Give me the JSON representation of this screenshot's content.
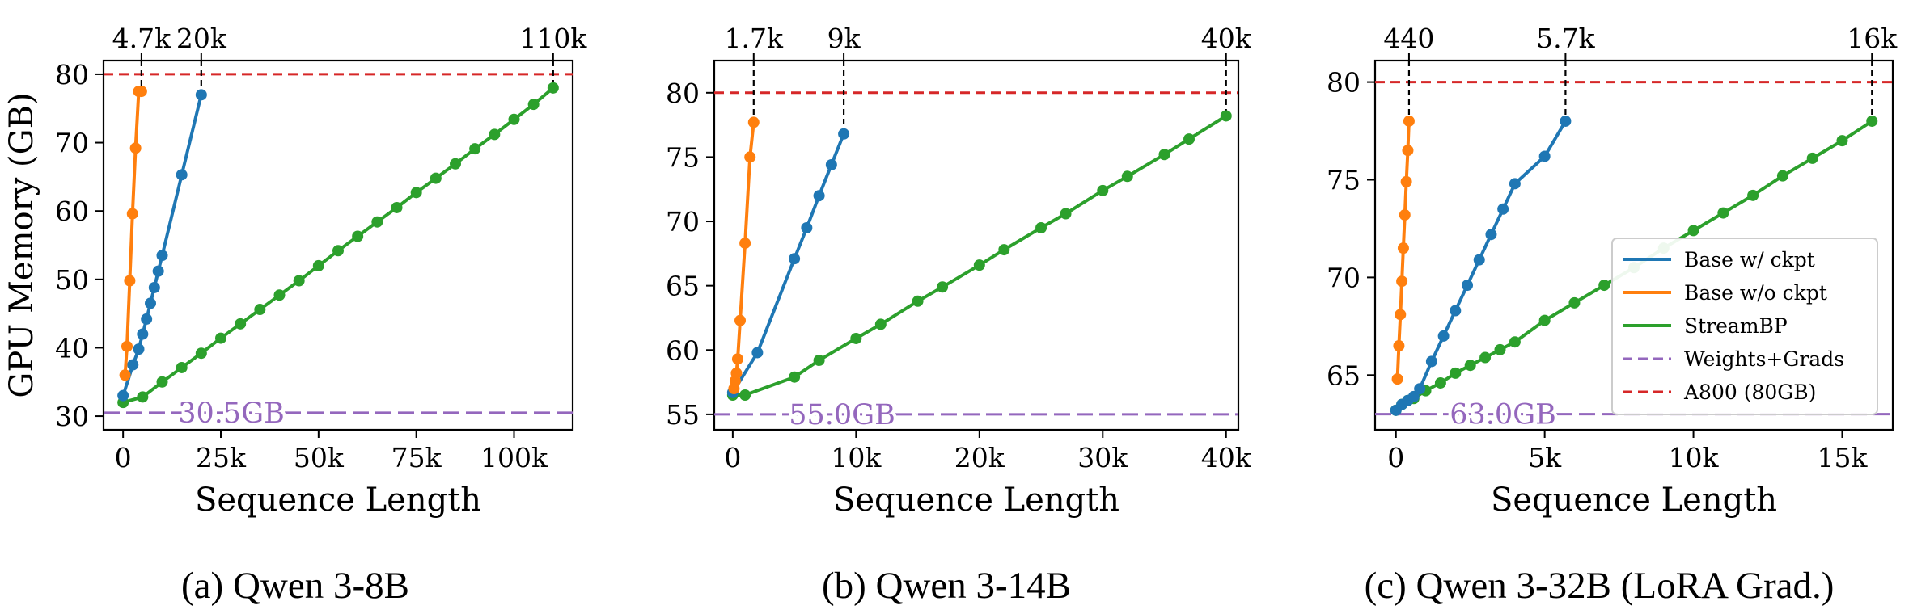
{
  "colors": {
    "base_ckpt": "#1f77b4",
    "base_no_ckpt": "#ff7f0e",
    "streambp": "#2ca02c",
    "weights_grads": "#9467bd",
    "a800": "#d62728"
  },
  "legend": {
    "items": [
      {
        "label": "Base w/ ckpt",
        "color": "#1f77b4",
        "style": "solid"
      },
      {
        "label": "Base w/o ckpt",
        "color": "#ff7f0e",
        "style": "solid"
      },
      {
        "label": "StreamBP",
        "color": "#2ca02c",
        "style": "solid"
      },
      {
        "label": "Weights+Grads",
        "color": "#9467bd",
        "style": "dashed"
      },
      {
        "label": "A800 (80GB)",
        "color": "#d62728",
        "style": "dashed"
      }
    ]
  },
  "chart_data": [
    {
      "type": "line",
      "caption": "(a) Qwen 3-8B",
      "xlabel": "Sequence Length",
      "ylabel": "GPU Memory (GB)",
      "xlim": [
        -5000,
        115000
      ],
      "ylim": [
        28,
        82
      ],
      "xticks": [
        {
          "v": 0,
          "label": "0"
        },
        {
          "v": 25000,
          "label": "25k"
        },
        {
          "v": 50000,
          "label": "50k"
        },
        {
          "v": 75000,
          "label": "75k"
        },
        {
          "v": 100000,
          "label": "100k"
        }
      ],
      "yticks": [
        {
          "v": 30,
          "label": "30"
        },
        {
          "v": 40,
          "label": "40"
        },
        {
          "v": 50,
          "label": "50"
        },
        {
          "v": 60,
          "label": "60"
        },
        {
          "v": 70,
          "label": "70"
        },
        {
          "v": 80,
          "label": "80"
        }
      ],
      "baseline": {
        "value": 30.5,
        "label": "30.5GB"
      },
      "limit": 80,
      "max_marks": [
        {
          "x": 4700,
          "y": 77.5,
          "label": "4.7k"
        },
        {
          "x": 20000,
          "y": 77,
          "label": "20k"
        },
        {
          "x": 110000,
          "y": 78,
          "label": "110k"
        }
      ],
      "series": [
        {
          "name": "Base w/ ckpt",
          "x": [
            0,
            2500,
            4000,
            5000,
            6000,
            7000,
            8000,
            9000,
            10000,
            15000,
            20000
          ],
          "y": [
            33,
            37.5,
            39.8,
            42,
            44.2,
            46.5,
            48.8,
            51.2,
            53.5,
            65.3,
            77
          ]
        },
        {
          "name": "Base w/o ckpt",
          "x": [
            500,
            1000,
            1700,
            2400,
            3200,
            4000,
            4700
          ],
          "y": [
            36,
            40.2,
            49.8,
            59.6,
            69.2,
            77.5,
            77.5
          ]
        },
        {
          "name": "StreamBP",
          "x": [
            0,
            5000,
            10000,
            15000,
            20000,
            25000,
            30000,
            35000,
            40000,
            45000,
            50000,
            55000,
            60000,
            65000,
            70000,
            75000,
            80000,
            85000,
            90000,
            95000,
            100000,
            105000,
            110000
          ],
          "y": [
            32,
            32.8,
            35,
            37.1,
            39.2,
            41.4,
            43.5,
            45.6,
            47.7,
            49.8,
            52,
            54.2,
            56.3,
            58.4,
            60.5,
            62.7,
            64.8,
            66.9,
            69.1,
            71.2,
            73.4,
            75.6,
            78
          ]
        }
      ]
    },
    {
      "type": "line",
      "caption": "(b) Qwen 3-14B",
      "xlabel": "Sequence Length",
      "ylabel": "",
      "xlim": [
        -1500,
        41000
      ],
      "ylim": [
        53.8,
        82.5
      ],
      "xticks": [
        {
          "v": 0,
          "label": "0"
        },
        {
          "v": 10000,
          "label": "10k"
        },
        {
          "v": 20000,
          "label": "20k"
        },
        {
          "v": 30000,
          "label": "30k"
        },
        {
          "v": 40000,
          "label": "40k"
        }
      ],
      "yticks": [
        {
          "v": 55,
          "label": "55"
        },
        {
          "v": 60,
          "label": "60"
        },
        {
          "v": 65,
          "label": "65"
        },
        {
          "v": 70,
          "label": "70"
        },
        {
          "v": 75,
          "label": "75"
        },
        {
          "v": 80,
          "label": "80"
        }
      ],
      "baseline": {
        "value": 55.0,
        "label": "55.0GB"
      },
      "limit": 80,
      "max_marks": [
        {
          "x": 1700,
          "y": 77.7,
          "label": "1.7k"
        },
        {
          "x": 9000,
          "y": 76.8,
          "label": "9k"
        },
        {
          "x": 40000,
          "y": 78.2,
          "label": "40k"
        }
      ],
      "series": [
        {
          "name": "Base w/ ckpt",
          "x": [
            0,
            2000,
            5000,
            6000,
            7000,
            8000,
            9000
          ],
          "y": [
            56.7,
            59.8,
            67.1,
            69.5,
            72,
            74.4,
            76.8
          ]
        },
        {
          "name": "Base w/o ckpt",
          "x": [
            100,
            200,
            300,
            400,
            600,
            1000,
            1400,
            1700
          ],
          "y": [
            57,
            57.6,
            58.2,
            59.3,
            62.3,
            68.3,
            75,
            77.7
          ]
        },
        {
          "name": "StreamBP",
          "x": [
            0,
            1000,
            5000,
            7000,
            10000,
            12000,
            15000,
            17000,
            20000,
            22000,
            25000,
            27000,
            30000,
            32000,
            35000,
            37000,
            40000
          ],
          "y": [
            56.5,
            56.5,
            57.9,
            59.2,
            60.9,
            62,
            63.8,
            64.9,
            66.6,
            67.8,
            69.5,
            70.6,
            72.4,
            73.5,
            75.2,
            76.4,
            78.2
          ]
        }
      ]
    },
    {
      "type": "line",
      "caption": "(c) Qwen 3-32B (LoRA Grad.)",
      "xlabel": "Sequence Length",
      "ylabel": "",
      "xlim": [
        -700,
        16700
      ],
      "ylim": [
        62.2,
        81.1
      ],
      "xticks": [
        {
          "v": 0,
          "label": "0"
        },
        {
          "v": 5000,
          "label": "5k"
        },
        {
          "v": 10000,
          "label": "10k"
        },
        {
          "v": 15000,
          "label": "15k"
        }
      ],
      "yticks": [
        {
          "v": 65,
          "label": "65"
        },
        {
          "v": 70,
          "label": "70"
        },
        {
          "v": 75,
          "label": "75"
        },
        {
          "v": 80,
          "label": "80"
        }
      ],
      "baseline": {
        "value": 63.0,
        "label": "63.0GB"
      },
      "limit": 80,
      "max_marks": [
        {
          "x": 440,
          "y": 78,
          "label": "440"
        },
        {
          "x": 5700,
          "y": 78,
          "label": "5.7k"
        },
        {
          "x": 16000,
          "y": 78,
          "label": "16k"
        }
      ],
      "series": [
        {
          "name": "Base w/ ckpt",
          "x": [
            0,
            200,
            400,
            600,
            800,
            1200,
            1600,
            2000,
            2400,
            2800,
            3200,
            3600,
            4000,
            5000,
            5700
          ],
          "y": [
            63.2,
            63.5,
            63.7,
            63.9,
            64.3,
            65.7,
            67,
            68.3,
            69.6,
            70.9,
            72.2,
            73.5,
            74.8,
            76.2,
            78
          ]
        },
        {
          "name": "Base w/o ckpt",
          "x": [
            50,
            100,
            150,
            200,
            250,
            300,
            350,
            400,
            440
          ],
          "y": [
            64.8,
            66.5,
            68.1,
            69.8,
            71.5,
            73.2,
            74.9,
            76.5,
            78
          ]
        },
        {
          "name": "StreamBP",
          "x": [
            0,
            200,
            400,
            600,
            1000,
            1500,
            2000,
            2500,
            3000,
            3500,
            4000,
            5000,
            6000,
            7000,
            8000,
            9000,
            10000,
            11000,
            12000,
            13000,
            14000,
            15000,
            16000
          ],
          "y": [
            63.2,
            63.5,
            63.7,
            63.8,
            64.2,
            64.6,
            65.1,
            65.5,
            65.9,
            66.3,
            66.7,
            67.8,
            68.7,
            69.6,
            70.5,
            71.5,
            72.4,
            73.3,
            74.2,
            75.2,
            76.1,
            77,
            78
          ]
        }
      ]
    }
  ]
}
